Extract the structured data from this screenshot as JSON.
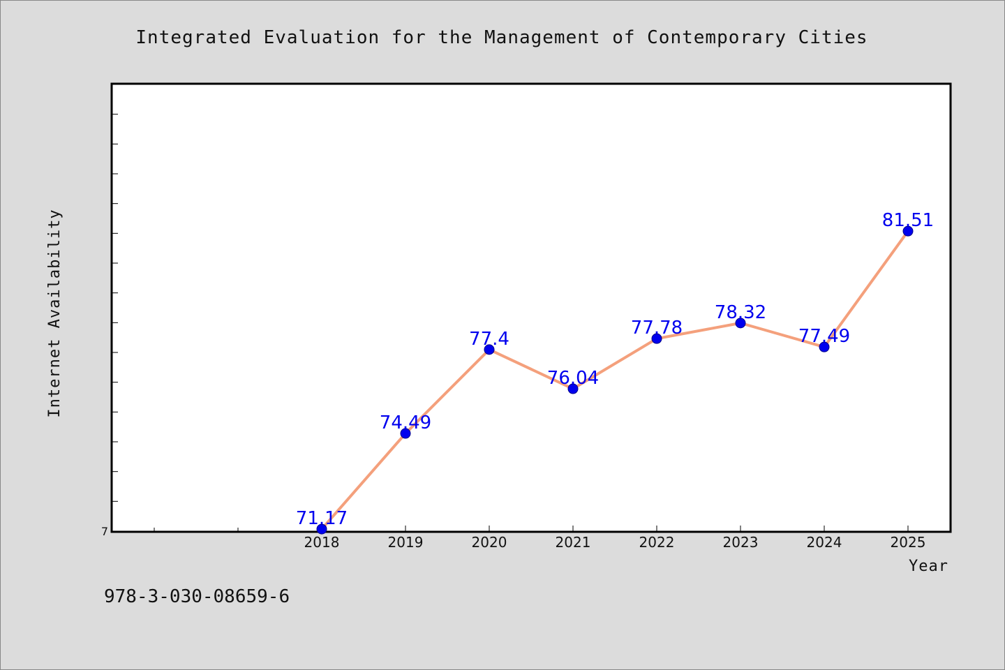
{
  "chart_data": {
    "type": "line",
    "title": "Integrated Evaluation for the Management of Contemporary Cities",
    "xlabel": "Year",
    "ylabel": "Internet Availability",
    "categories": [
      "2018",
      "2019",
      "2020",
      "2021",
      "2022",
      "2023",
      "2024",
      "2025"
    ],
    "series": [
      {
        "values": [
          71.17,
          74.49,
          77.4,
          76.04,
          77.78,
          78.32,
          77.49,
          81.51
        ],
        "line_color": "#f4a07c",
        "marker_color": "#0000ee",
        "label_color": "#0000ee"
      }
    ],
    "data_labels": [
      "71.17",
      "74.49",
      "77.4",
      "76.04",
      "77.78",
      "78.32",
      "77.49",
      "81.51"
    ],
    "yticks": [
      "7"
    ],
    "ylim": [
      71.1,
      86.6
    ],
    "x_positions": [
      2.5,
      3.5,
      4.5,
      5.5,
      6.5,
      7.5,
      8.5,
      9.5
    ],
    "xlim": [
      0,
      10
    ],
    "grid": false,
    "legend": "none"
  },
  "footer": {
    "isbn": "978-3-030-08659-6"
  }
}
